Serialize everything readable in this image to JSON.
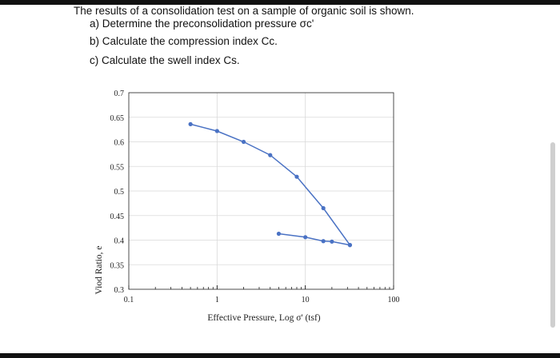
{
  "problem": {
    "intro": "The results of a consolidation test on a sample of organic soil is shown.",
    "parts": [
      "a) Determine the preconsolidation pressure σc'",
      "b) Calculate the compression index Cc.",
      "c) Calculate the swell index Cs."
    ]
  },
  "chart_data": {
    "type": "scatter",
    "xscale": "log",
    "xlim": [
      0.1,
      100
    ],
    "ylim": [
      0.3,
      0.7
    ],
    "xlabel": "Effective Pressure, Log σ' (tsf)",
    "ylabel": "Viod Ratio, e",
    "xticks": [
      0.1,
      1,
      10,
      100
    ],
    "xtick_labels": [
      "0.1",
      "1",
      "10",
      "100"
    ],
    "yticks": [
      0.3,
      0.35,
      0.4,
      0.45,
      0.5,
      0.55,
      0.6,
      0.65,
      0.7
    ],
    "ytick_labels": [
      "0.3",
      "0.35",
      "0.4",
      "0.45",
      "0.5",
      "0.55",
      "0.6",
      "0.65",
      "0.7"
    ],
    "grid": true,
    "color": "#4a72c4",
    "series": [
      {
        "x": [
          0.5,
          1,
          2,
          4,
          8,
          16,
          32
        ],
        "y": [
          0.636,
          0.622,
          0.6,
          0.573,
          0.529,
          0.465,
          0.39
        ]
      },
      {
        "x": [
          32,
          20,
          16,
          10,
          5
        ],
        "y": [
          0.39,
          0.397,
          0.398,
          0.406,
          0.413
        ]
      }
    ]
  }
}
